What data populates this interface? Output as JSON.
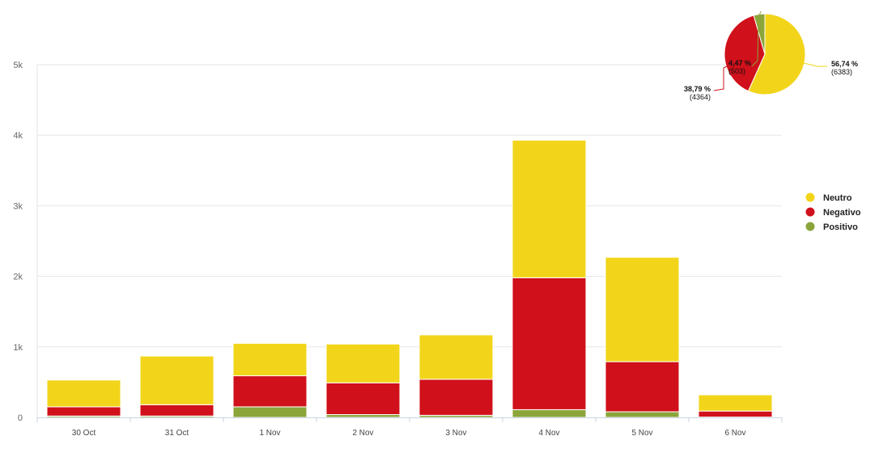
{
  "colors": {
    "Neutro": "#f2d51a",
    "Negativo": "#d0101a",
    "Positivo": "#8ba53a",
    "grid": "#e6e6e6",
    "axis": "#c9d3e0"
  },
  "chart_data": [
    {
      "type": "bar",
      "stacked": true,
      "categories": [
        "30 Oct",
        "31 Oct",
        "1 Nov",
        "2 Nov",
        "3 Nov",
        "4 Nov",
        "5 Nov",
        "6 Nov"
      ],
      "series": [
        {
          "name": "Positivo",
          "values": [
            20,
            20,
            150,
            40,
            30,
            110,
            80,
            5
          ]
        },
        {
          "name": "Negativo",
          "values": [
            130,
            160,
            440,
            450,
            510,
            1870,
            710,
            85
          ]
        },
        {
          "name": "Neutro",
          "values": [
            380,
            690,
            460,
            550,
            630,
            1950,
            1480,
            230
          ]
        }
      ],
      "ylim": [
        0,
        5000
      ],
      "yticks": [
        "0",
        "1k",
        "2k",
        "3k",
        "4k",
        "5k"
      ],
      "ytick_values": [
        0,
        1000,
        2000,
        3000,
        4000,
        5000
      ],
      "grid": true,
      "legend": {
        "position": "right",
        "entries": [
          "Neutro",
          "Negativo",
          "Positivo"
        ]
      }
    },
    {
      "type": "pie",
      "slices": [
        {
          "name": "Neutro",
          "value": 6383,
          "percent_label": "56,74 %",
          "count_label": "(6383)"
        },
        {
          "name": "Negativo",
          "value": 4364,
          "percent_label": "38,79 %",
          "count_label": "(4364)"
        },
        {
          "name": "Positivo",
          "value": 503,
          "percent_label": "4,47 %",
          "count_label": "(503)"
        }
      ],
      "position": "top-right"
    }
  ]
}
